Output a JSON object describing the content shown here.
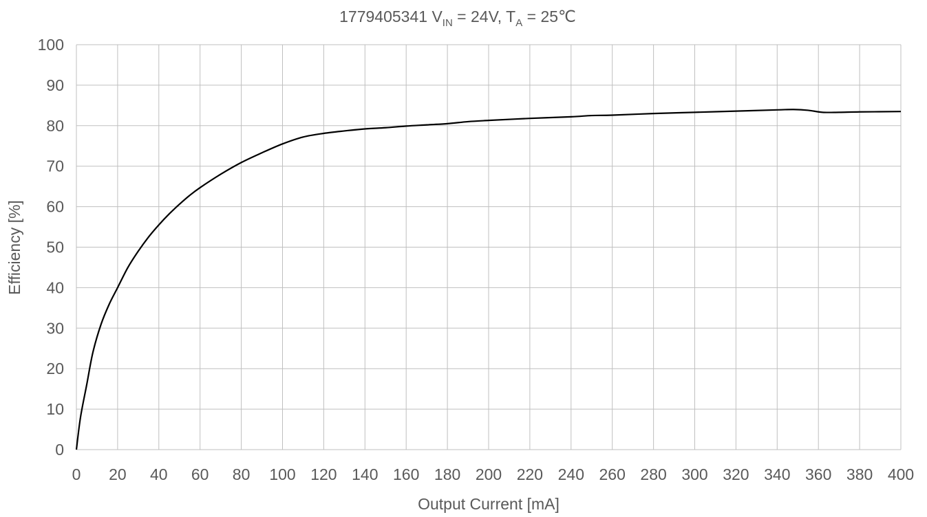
{
  "chart_data": {
    "type": "line",
    "title": {
      "id": "1779405341",
      "v": "V",
      "v_sub": "IN",
      "v_rest": " = 24V, ",
      "t": "T",
      "t_sub": "A",
      "t_rest": " = 25℃"
    },
    "xlabel": "Output Current [mA]",
    "ylabel": "Efficiency [%]",
    "xlim": [
      0,
      400
    ],
    "ylim": [
      0,
      100
    ],
    "xticks": [
      0,
      20,
      40,
      60,
      80,
      100,
      120,
      140,
      160,
      180,
      200,
      220,
      240,
      260,
      280,
      300,
      320,
      340,
      360,
      380,
      400
    ],
    "yticks": [
      0,
      10,
      20,
      30,
      40,
      50,
      60,
      70,
      80,
      90,
      100
    ],
    "grid": true,
    "line_color": "#000000",
    "grid_color": "#bfbfbf",
    "series": [
      {
        "x": [
          0,
          2,
          5,
          8,
          12,
          16,
          20,
          25,
          30,
          35,
          40,
          45,
          50,
          55,
          60,
          70,
          80,
          90,
          100,
          110,
          120,
          130,
          140,
          150,
          160,
          170,
          180,
          190,
          200,
          220,
          240,
          250,
          260,
          280,
          300,
          320,
          340,
          348,
          355,
          362,
          370,
          380,
          400
        ],
        "y": [
          0,
          8,
          16,
          24,
          31,
          36,
          40,
          45,
          49,
          52.5,
          55.5,
          58.2,
          60.6,
          62.8,
          64.7,
          68,
          70.9,
          73.3,
          75.5,
          77.2,
          78.1,
          78.7,
          79.2,
          79.5,
          79.9,
          80.2,
          80.5,
          81,
          81.3,
          81.8,
          82.2,
          82.5,
          82.6,
          83,
          83.3,
          83.6,
          83.9,
          84,
          83.8,
          83.3,
          83.3,
          83.4,
          83.5
        ]
      }
    ]
  }
}
